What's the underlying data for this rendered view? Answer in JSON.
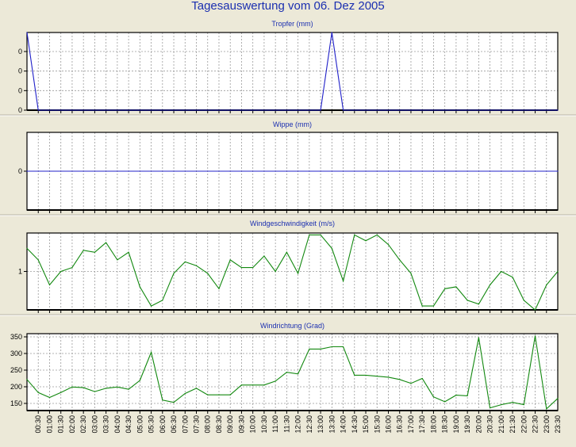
{
  "title": "Tagesauswertung vom 06. Dez 2005",
  "colors": {
    "background": "#ece9d8",
    "title": "#1b2fb0",
    "blue_series": "#2020c8",
    "green_series": "#12880f",
    "grid": "#9a9a9a"
  },
  "chart_data": [
    {
      "type": "line",
      "title": "Tropfer (mm)",
      "y_tick_labels": [
        "0",
        "0",
        "0",
        "0"
      ],
      "ylim": [
        0,
        4
      ],
      "x": [
        0,
        1,
        26,
        27,
        28,
        47
      ],
      "values": [
        4,
        0,
        0,
        4,
        0,
        0
      ],
      "color": "#2020c8",
      "grid": true
    },
    {
      "type": "line",
      "title": "Wippe (mm)",
      "y_tick_labels": [
        "0"
      ],
      "ylim": [
        -1,
        1
      ],
      "x": [
        0,
        47
      ],
      "values": [
        0,
        0
      ],
      "color": "#2020c8",
      "grid": true
    },
    {
      "type": "line",
      "title": "Windgeschwindigkeit (m/s)",
      "y_tick_labels": [
        "1"
      ],
      "ylim": [
        0,
        2
      ],
      "x": [
        0,
        1,
        2,
        3,
        4,
        5,
        6,
        7,
        8,
        9,
        10,
        11,
        12,
        13,
        14,
        15,
        16,
        17,
        18,
        19,
        20,
        21,
        22,
        23,
        24,
        25,
        26,
        27,
        28,
        29,
        30,
        31,
        32,
        33,
        34,
        35,
        36,
        37,
        38,
        39,
        40,
        41,
        42,
        43,
        44,
        45,
        46,
        47
      ],
      "values": [
        1.6,
        1.3,
        0.65,
        1.0,
        1.1,
        1.55,
        1.5,
        1.75,
        1.3,
        1.5,
        0.6,
        0.1,
        0.25,
        0.95,
        1.25,
        1.15,
        0.95,
        0.55,
        1.3,
        1.1,
        1.1,
        1.4,
        1.0,
        1.5,
        0.95,
        1.95,
        1.95,
        1.6,
        0.75,
        1.95,
        1.8,
        1.95,
        1.7,
        1.3,
        0.95,
        0.1,
        0.1,
        0.55,
        0.6,
        0.25,
        0.15,
        0.65,
        1.0,
        0.85,
        0.25,
        0.0,
        0.65,
        1.0
      ],
      "color": "#12880f",
      "grid": true
    },
    {
      "type": "line",
      "title": "Windrichtung (Grad)",
      "y_tick_labels": [
        "350",
        "300",
        "250",
        "200",
        "150"
      ],
      "ylim": [
        120,
        355
      ],
      "x": [
        0,
        1,
        2,
        3,
        4,
        5,
        6,
        7,
        8,
        9,
        10,
        11,
        12,
        13,
        14,
        15,
        16,
        17,
        18,
        19,
        20,
        21,
        22,
        23,
        24,
        25,
        26,
        27,
        28,
        29,
        30,
        31,
        32,
        33,
        34,
        35,
        36,
        37,
        38,
        39,
        40,
        41,
        42,
        43,
        44,
        45,
        46,
        47
      ],
      "values": [
        215,
        175,
        160,
        175,
        192,
        190,
        178,
        188,
        192,
        185,
        212,
        298,
        152,
        145,
        172,
        188,
        168,
        168,
        168,
        198,
        198,
        198,
        210,
        237,
        232,
        308,
        308,
        315,
        315,
        228,
        228,
        225,
        222,
        215,
        203,
        218,
        162,
        147,
        167,
        165,
        343,
        128,
        138,
        145,
        138,
        348,
        125,
        157
      ],
      "color": "#12880f",
      "grid": true,
      "x_tick_labels": [
        "00:30",
        "01:00",
        "01:30",
        "02:00",
        "02:30",
        "03:00",
        "03:30",
        "04:00",
        "04:30",
        "05:00",
        "05:30",
        "06:00",
        "06:30",
        "07:00",
        "07:30",
        "08:00",
        "08:30",
        "09:00",
        "09:30",
        "10:00",
        "10:30",
        "11:00",
        "11:30",
        "12:00",
        "12:30",
        "13:00",
        "13:30",
        "14:00",
        "14:30",
        "15:00",
        "15:30",
        "16:00",
        "16:30",
        "17:00",
        "17:30",
        "18:00",
        "18:30",
        "19:00",
        "19:30",
        "20:00",
        "20:30",
        "21:00",
        "21:30",
        "22:00",
        "22:30",
        "23:00",
        "23:30"
      ]
    }
  ]
}
